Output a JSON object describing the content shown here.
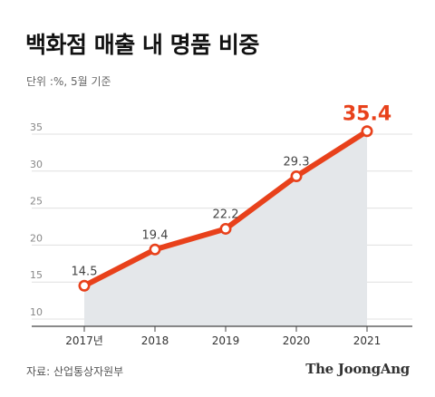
{
  "title": "백화점 매출 내 명품 비중",
  "unit_label": "단위 :%, 5월 기준",
  "source": "자료: 산업통상자원부",
  "brand": "The JoongAng",
  "colors": {
    "line": "#e8411b",
    "area": "#e4e7ea",
    "highlight": "#e8411b",
    "grid": "#e0e0e0"
  },
  "chart_data": {
    "type": "area",
    "categories": [
      "2017년",
      "2018",
      "2019",
      "2020",
      "2021"
    ],
    "values": [
      14.5,
      19.4,
      22.2,
      29.3,
      35.4
    ],
    "data_labels": [
      "14.5",
      "19.4",
      "22.2",
      "29.3",
      "35.4"
    ],
    "y_ticks": [
      10,
      15,
      20,
      25,
      30,
      35
    ],
    "ylim": [
      10,
      35
    ],
    "grid": true,
    "legend": "none",
    "highlight_index": 4
  }
}
